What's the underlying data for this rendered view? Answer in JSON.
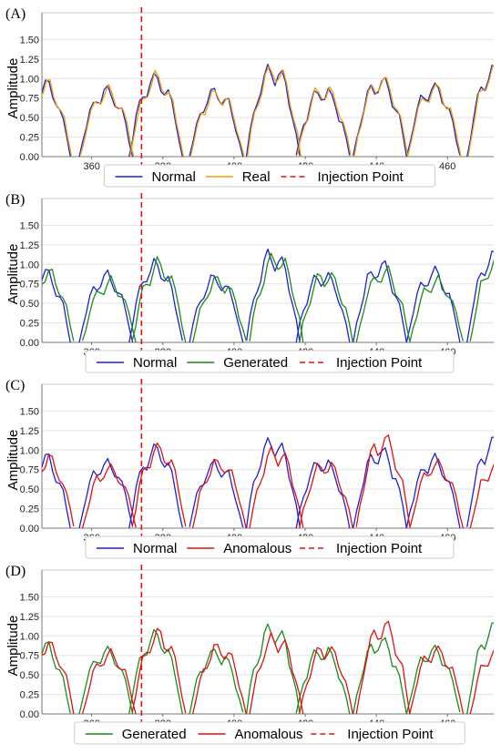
{
  "colors": {
    "Normal": "#1f1fd6",
    "Real": "#f0a000",
    "Generated": "#1a8a1a",
    "Anomalous": "#e01010",
    "Injection Point": "#e01010",
    "grid": "#e3e3e3",
    "axis": "#555555"
  },
  "chart_data": [
    {
      "type": "line",
      "panel_label": "(A)",
      "ylabel": "Amplitude",
      "xlim": [
        346,
        473
      ],
      "ylim": [
        0,
        1.75
      ],
      "x_ticks": [
        "360",
        "380",
        "400",
        "420",
        "440",
        "460"
      ],
      "y_ticks": [
        "0.00",
        "0.25",
        "0.50",
        "0.75",
        "1.00",
        "1.25",
        "1.50"
      ],
      "grid": "horizontal",
      "legend_position": "bottom",
      "injection_x": 374,
      "series": [
        {
          "name": "Normal",
          "kind": "normal",
          "peaks": [
            1.0,
            0.9,
            1.07,
            0.87,
            1.2,
            0.9,
            1.04,
            0.94,
            1.18
          ]
        },
        {
          "name": "Real",
          "kind": "normal_offset",
          "peaks": [
            1.0,
            0.9,
            1.07,
            0.87,
            1.2,
            0.93,
            1.04,
            0.94,
            1.18
          ]
        },
        {
          "name": "Injection Point",
          "kind": "vline"
        }
      ]
    },
    {
      "type": "line",
      "panel_label": "(B)",
      "ylabel": "Amplitude",
      "xlim": [
        346,
        473
      ],
      "ylim": [
        0,
        1.75
      ],
      "x_ticks": [
        "360",
        "380",
        "400",
        "420",
        "440",
        "460"
      ],
      "y_ticks": [
        "0.00",
        "0.25",
        "0.50",
        "0.75",
        "1.00",
        "1.25",
        "1.50"
      ],
      "grid": "horizontal",
      "legend_position": "bottom",
      "injection_x": 374,
      "series": [
        {
          "name": "Normal",
          "kind": "normal",
          "peaks": [
            0.97,
            0.9,
            1.07,
            0.87,
            1.2,
            0.92,
            1.04,
            0.94,
            1.18
          ]
        },
        {
          "name": "Generated",
          "kind": "shifted",
          "peaks": [
            0.96,
            0.82,
            1.06,
            0.85,
            1.17,
            0.93,
            0.97,
            0.84,
            1.12
          ]
        },
        {
          "name": "Injection Point",
          "kind": "vline"
        }
      ]
    },
    {
      "type": "line",
      "panel_label": "(C)",
      "ylabel": "Amplitude",
      "xlim": [
        346,
        473
      ],
      "ylim": [
        0,
        1.75
      ],
      "x_ticks": [
        "360",
        "380",
        "400",
        "420",
        "440",
        "460"
      ],
      "y_ticks": [
        "0.00",
        "0.25",
        "0.50",
        "0.75",
        "1.00",
        "1.25",
        "1.50"
      ],
      "grid": "horizontal",
      "legend_position": "bottom",
      "injection_x": 374,
      "series": [
        {
          "name": "Normal",
          "kind": "normal",
          "peaks": [
            0.95,
            0.9,
            1.07,
            0.87,
            1.2,
            0.9,
            1.04,
            0.94,
            1.18
          ]
        },
        {
          "name": "Anomalous",
          "kind": "shifted",
          "peaks": [
            0.95,
            0.82,
            1.1,
            0.9,
            1.05,
            0.88,
            1.2,
            0.88,
            0.87
          ]
        },
        {
          "name": "Injection Point",
          "kind": "vline"
        }
      ]
    },
    {
      "type": "line",
      "panel_label": "(D)",
      "ylabel": "Amplitude",
      "xlim": [
        346,
        473
      ],
      "ylim": [
        0,
        1.75
      ],
      "x_ticks": [
        "360",
        "380",
        "400",
        "420",
        "440",
        "460"
      ],
      "y_ticks": [
        "0.00",
        "0.25",
        "0.50",
        "0.75",
        "1.00",
        "1.25",
        "1.50"
      ],
      "grid": "horizontal",
      "legend_position": "bottom",
      "injection_x": 374,
      "series": [
        {
          "name": "Generated",
          "kind": "normal",
          "peaks": [
            0.93,
            0.86,
            1.07,
            0.85,
            1.18,
            0.88,
            1.0,
            0.88,
            1.18
          ]
        },
        {
          "name": "Anomalous",
          "kind": "shifted",
          "peaks": [
            0.95,
            0.82,
            1.1,
            0.9,
            1.04,
            0.9,
            1.21,
            0.88,
            0.87
          ]
        },
        {
          "name": "Injection Point",
          "kind": "vline"
        }
      ]
    }
  ]
}
